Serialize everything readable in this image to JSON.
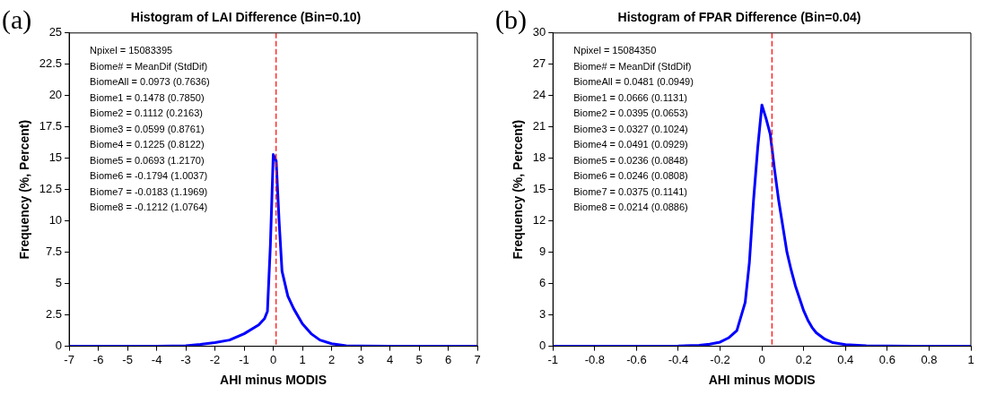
{
  "chart_data": [
    {
      "type": "line",
      "title": "Histogram of LAI Difference (Bin=0.10)",
      "xlabel": "AHI minus MODIS",
      "ylabel": "Frequency (%, Percent)",
      "series": [
        {
          "color": "#0000ff",
          "x": [
            -7,
            -6,
            -5,
            -4,
            -3,
            -2.5,
            -2,
            -1.5,
            -1,
            -0.5,
            -0.3,
            -0.2,
            -0.1,
            0,
            0.1,
            0.2,
            0.3,
            0.5,
            0.7,
            1,
            1.3,
            1.6,
            2,
            2.5,
            3,
            4,
            5,
            6,
            7
          ],
          "values": [
            0,
            0,
            0,
            0,
            0.05,
            0.15,
            0.3,
            0.5,
            1.0,
            1.7,
            2.2,
            2.8,
            8,
            15.3,
            14.8,
            10,
            6,
            4,
            3,
            1.8,
            1,
            0.5,
            0.2,
            0.05,
            0.02,
            0,
            0,
            0,
            0
          ]
        }
      ],
      "xlim": [
        -7,
        7
      ],
      "xticks": [
        -7,
        -6,
        -5,
        -4,
        -3,
        -2,
        -1,
        0,
        1,
        2,
        3,
        4,
        5,
        6,
        7
      ],
      "ylim": [
        0,
        25
      ],
      "yticks": [
        0,
        2.5,
        5,
        7.5,
        10,
        12.5,
        15,
        17.5,
        20,
        22.5,
        25
      ],
      "grid": false,
      "legend": false,
      "line_style": "solid",
      "marker": "none",
      "ref_lines": [
        {
          "axis": "x",
          "value": 0.0973,
          "color": "#ff0000",
          "line_style": "dashed"
        }
      ],
      "annotations": [
        "(a)",
        "Npixel = 15083395",
        "Biome# = MeanDif (StdDif)",
        "BiomeAll = 0.0973 (0.7636)",
        "Biome1 = 0.1478 (0.7850)",
        "Biome2 = 0.1112 (0.2163)",
        "Biome3 = 0.0599 (0.8761)",
        "Biome4 = 0.1225 (0.8122)",
        "Biome5 = 0.0693 (1.2170)",
        "Biome6 = -0.1794 (1.0037)",
        "Biome7 = -0.0183 (1.1969)",
        "Biome8 = -0.1212 (1.0764)"
      ]
    },
    {
      "type": "line",
      "title": "Histogram of FPAR Difference (Bin=0.04)",
      "xlabel": "AHI minus MODIS",
      "ylabel": "Frequency (%, Percent)",
      "series": [
        {
          "color": "#0000ff",
          "x": [
            -1,
            -0.8,
            -0.6,
            -0.4,
            -0.3,
            -0.25,
            -0.2,
            -0.16,
            -0.12,
            -0.08,
            -0.06,
            -0.04,
            -0.02,
            0,
            0.02,
            0.04,
            0.06,
            0.08,
            0.1,
            0.12,
            0.14,
            0.16,
            0.18,
            0.2,
            0.22,
            0.24,
            0.26,
            0.3,
            0.34,
            0.4,
            0.5,
            0.6,
            0.8,
            1
          ],
          "values": [
            0,
            0,
            0,
            0.02,
            0.1,
            0.2,
            0.4,
            0.8,
            1.5,
            4.2,
            8,
            14,
            19,
            23.1,
            21.8,
            20.3,
            17,
            14,
            11.5,
            9,
            7.3,
            5.8,
            4.6,
            3.4,
            2.5,
            1.8,
            1.3,
            0.7,
            0.35,
            0.15,
            0.05,
            0.02,
            0,
            0
          ]
        }
      ],
      "xlim": [
        -1,
        1
      ],
      "xticks": [
        -1,
        -0.8,
        -0.6,
        -0.4,
        -0.2,
        0,
        0.2,
        0.4,
        0.6,
        0.8,
        1
      ],
      "ylim": [
        0,
        30
      ],
      "yticks": [
        0,
        3,
        6,
        9,
        12,
        15,
        18,
        21,
        24,
        27,
        30
      ],
      "grid": false,
      "legend": false,
      "line_style": "solid",
      "marker": "none",
      "ref_lines": [
        {
          "axis": "x",
          "value": 0.0481,
          "color": "#ff0000",
          "line_style": "dashed"
        }
      ],
      "annotations": [
        "(b)",
        "Npixel = 15084350",
        "Biome# = MeanDif (StdDif)",
        "BiomeAll = 0.0481 (0.0949)",
        "Biome1 = 0.0666 (0.1131)",
        "Biome2 = 0.0395 (0.0653)",
        "Biome3 = 0.0327 (0.1024)",
        "Biome4 = 0.0491 (0.0929)",
        "Biome5 = 0.0236 (0.0848)",
        "Biome6 = 0.0246 (0.0808)",
        "Biome7 = 0.0375 (0.1141)",
        "Biome8 = 0.0214 (0.0886)"
      ]
    }
  ]
}
